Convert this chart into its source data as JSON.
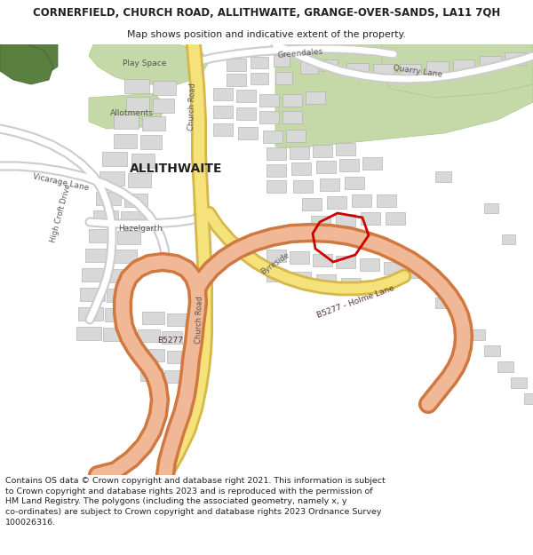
{
  "title_line1": "CORNERFIELD, CHURCH ROAD, ALLITHWAITE, GRANGE-OVER-SANDS, LA11 7QH",
  "title_line2": "Map shows position and indicative extent of the property.",
  "footer_text": "Contains OS data © Crown copyright and database right 2021. This information is subject to Crown copyright and database rights 2023 and is reproduced with the permission of HM Land Registry. The polygons (including the associated geometry, namely x, y co-ordinates) are subject to Crown copyright and database rights 2023 Ordnance Survey 100026316.",
  "title_fontsize": 8.5,
  "subtitle_fontsize": 7.8,
  "footer_fontsize": 6.8,
  "fig_width": 6.0,
  "fig_height": 6.25,
  "road_yellow_fill": "#f5e27a",
  "road_yellow_edge": "#d4b84a",
  "road_orange_fill": "#f0b896",
  "road_orange_edge": "#d07840",
  "road_white_fill": "#ffffff",
  "road_white_edge": "#cccccc",
  "building_fill": "#d8d8d8",
  "building_edge": "#aaaaaa",
  "green_light": "#c5d9a8",
  "green_dark": "#5a8040",
  "red_line": "#cc0000",
  "text_black": "#222222",
  "text_gray": "#555555",
  "map_bg": "#ffffff"
}
